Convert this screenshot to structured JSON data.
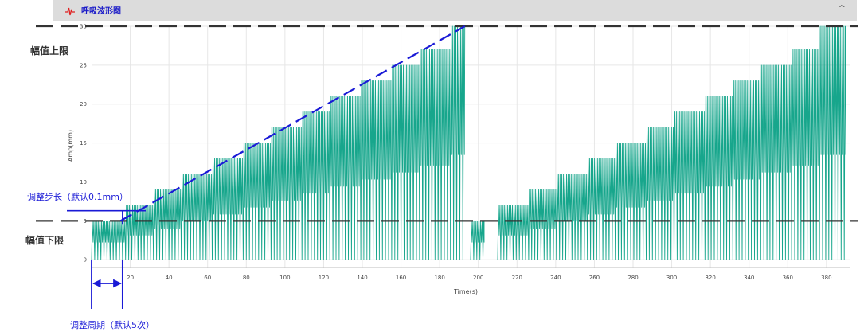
{
  "panel": {
    "title": "呼吸波形图",
    "collapse_glyph": "^",
    "icon": "waveform-icon",
    "icon_color": "#e02020"
  },
  "annotations": {
    "upper_limit": "幅值上限",
    "lower_limit": "幅值下限",
    "step_label": "调整步长（默认0.1mm）",
    "period_label": "调整周期（默认5次）"
  },
  "colors": {
    "wave": "#17a68c",
    "limit_line": "#333333",
    "annotation": "#1a1ad6",
    "grid": "#e6e6e6"
  },
  "chart_data": {
    "type": "line",
    "xlabel": "Time(s)",
    "ylabel": "Amp(mm)",
    "xlim": [
      0,
      392
    ],
    "ylim": [
      -1,
      30
    ],
    "x_ticks": [
      20,
      40,
      60,
      80,
      100,
      120,
      140,
      160,
      180,
      200,
      220,
      240,
      260,
      280,
      300,
      320,
      340,
      360,
      380
    ],
    "y_ticks": [
      0,
      5,
      10,
      15,
      20,
      25,
      30
    ],
    "grid": true,
    "upper_limit": 30,
    "lower_limit": 5,
    "breath_period_s": 1.6,
    "series": [
      {
        "segments": [
          {
            "start": 0,
            "end": 193,
            "steps": [
              [
                0,
                5
              ],
              [
                16,
                7
              ],
              [
                31,
                9
              ],
              [
                46,
                11
              ],
              [
                61,
                13
              ],
              [
                77,
                15
              ],
              [
                92,
                17
              ],
              [
                108,
                19
              ],
              [
                123,
                21
              ],
              [
                138,
                23
              ],
              [
                154,
                25
              ],
              [
                169,
                27
              ],
              [
                184,
                30
              ]
            ]
          },
          {
            "start": 196,
            "end": 203,
            "steps": [
              [
                196,
                5
              ]
            ]
          },
          {
            "start": 210,
            "end": 390,
            "steps": [
              [
                210,
                7
              ],
              [
                225,
                9
              ],
              [
                240,
                11
              ],
              [
                255,
                13
              ],
              [
                270,
                15
              ],
              [
                286,
                17
              ],
              [
                301,
                19
              ],
              [
                316,
                21
              ],
              [
                331,
                23
              ],
              [
                346,
                25
              ],
              [
                361,
                27
              ],
              [
                376,
                30
              ]
            ]
          }
        ]
      }
    ],
    "step_trend_line": {
      "x": [
        15,
        193
      ],
      "y": [
        5,
        30
      ]
    },
    "adjust_period_interval": [
      0,
      16
    ]
  }
}
